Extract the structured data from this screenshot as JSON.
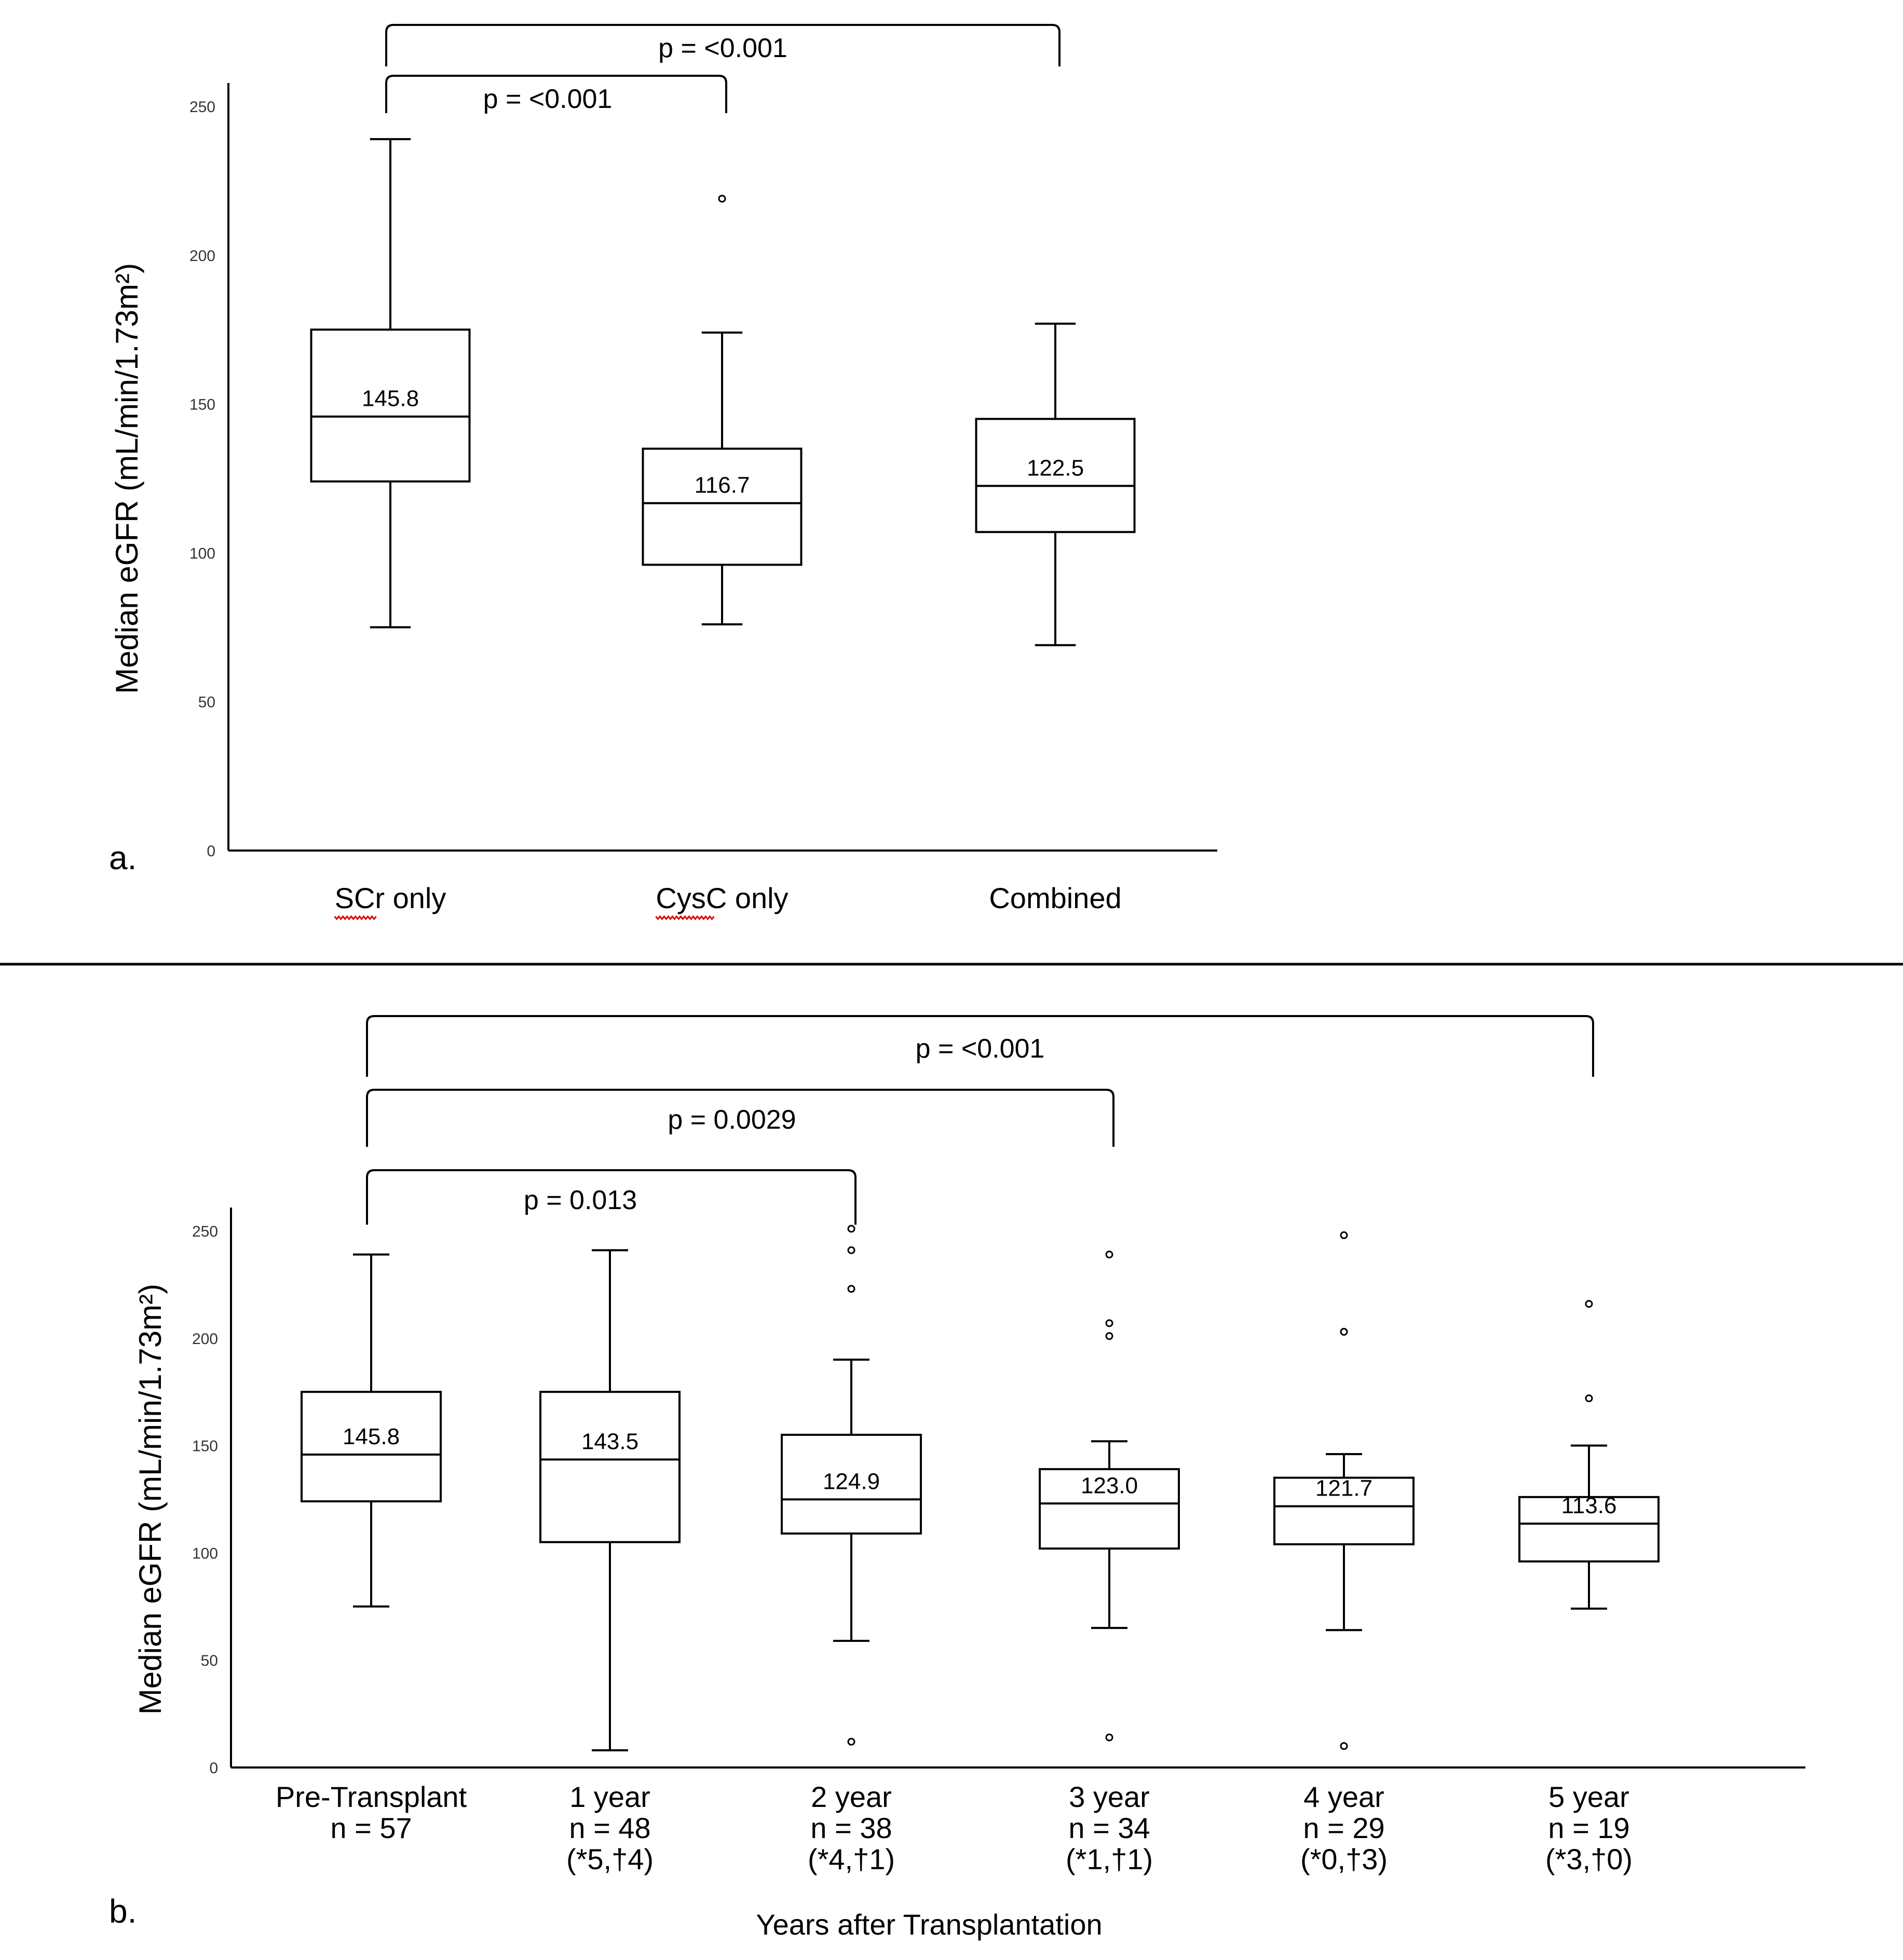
{
  "chart_data": [
    {
      "type": "box",
      "panel_label": "a.",
      "ylabel": "Median eGFR (mL/min/1.73m²)",
      "ylim": [
        0,
        250
      ],
      "yticks": [
        0,
        50,
        100,
        150,
        200,
        250
      ],
      "categories": [
        "SCr only",
        "CysC only",
        "Combined"
      ],
      "spellcheck_flagged": [
        "SCr",
        "CysC"
      ],
      "boxes": [
        {
          "category": "SCr only",
          "whisker_low": 75,
          "q1": 124,
          "median": 145.8,
          "q3": 175,
          "whisker_high": 239,
          "median_label": "145.8",
          "outliers": []
        },
        {
          "category": "CysC only",
          "whisker_low": 76,
          "q1": 96,
          "median": 116.7,
          "q3": 135,
          "whisker_high": 174,
          "median_label": "116.7",
          "outliers": [
            219
          ]
        },
        {
          "category": "Combined",
          "whisker_low": 69,
          "q1": 107,
          "median": 122.5,
          "q3": 145,
          "whisker_high": 177,
          "median_label": "122.5",
          "outliers": []
        }
      ],
      "comparisons": [
        {
          "from": 0,
          "to": 1,
          "label": "p = <0.001"
        },
        {
          "from": 0,
          "to": 2,
          "label": "p = <0.001"
        }
      ],
      "grid": false
    },
    {
      "type": "box",
      "panel_label": "b.",
      "ylabel": "Median eGFR (mL/min/1.73m²)",
      "xlabel": "Years after Transplantation",
      "ylim": [
        0,
        250
      ],
      "yticks": [
        0,
        50,
        100,
        150,
        200,
        250
      ],
      "categories": [
        {
          "lines": [
            "Pre-Transplant",
            "n = 57"
          ]
        },
        {
          "lines": [
            "1 year",
            "n = 48",
            "(*5,†4)"
          ]
        },
        {
          "lines": [
            "2 year",
            "n = 38",
            "(*4,†1)"
          ]
        },
        {
          "lines": [
            "3 year",
            "n = 34",
            "(*1,†1)"
          ]
        },
        {
          "lines": [
            "4 year",
            "n = 29",
            "(*0,†3)"
          ]
        },
        {
          "lines": [
            "5 year",
            "n = 19",
            "(*3,†0)"
          ]
        }
      ],
      "boxes": [
        {
          "whisker_low": 75,
          "q1": 124,
          "median": 145.8,
          "q3": 175,
          "whisker_high": 239,
          "median_label": "145.8",
          "outliers": []
        },
        {
          "whisker_low": 8,
          "q1": 105,
          "median": 143.5,
          "q3": 175,
          "whisker_high": 241,
          "median_label": "143.5",
          "outliers": []
        },
        {
          "whisker_low": 59,
          "q1": 109,
          "median": 124.9,
          "q3": 155,
          "whisker_high": 190,
          "median_label": "124.9",
          "outliers": [
            251,
            241,
            223,
            12
          ]
        },
        {
          "whisker_low": 65,
          "q1": 102,
          "median": 123.0,
          "q3": 139,
          "whisker_high": 152,
          "median_label": "123.0",
          "outliers": [
            239,
            207,
            201,
            14
          ]
        },
        {
          "whisker_low": 64,
          "q1": 104,
          "median": 121.7,
          "q3": 135,
          "whisker_high": 146,
          "median_label": "121.7",
          "outliers": [
            248,
            203,
            10
          ]
        },
        {
          "whisker_low": 74,
          "q1": 96,
          "median": 113.6,
          "q3": 126,
          "whisker_high": 150,
          "median_label": "113.6",
          "outliers": [
            216,
            172
          ]
        }
      ],
      "comparisons": [
        {
          "from": 0,
          "to": 2,
          "label": "p = 0.013"
        },
        {
          "from": 0,
          "to": 3,
          "label": "p = 0.0029"
        },
        {
          "from": 0,
          "to": 5,
          "label": "p = <0.001"
        }
      ],
      "grid": false
    }
  ]
}
